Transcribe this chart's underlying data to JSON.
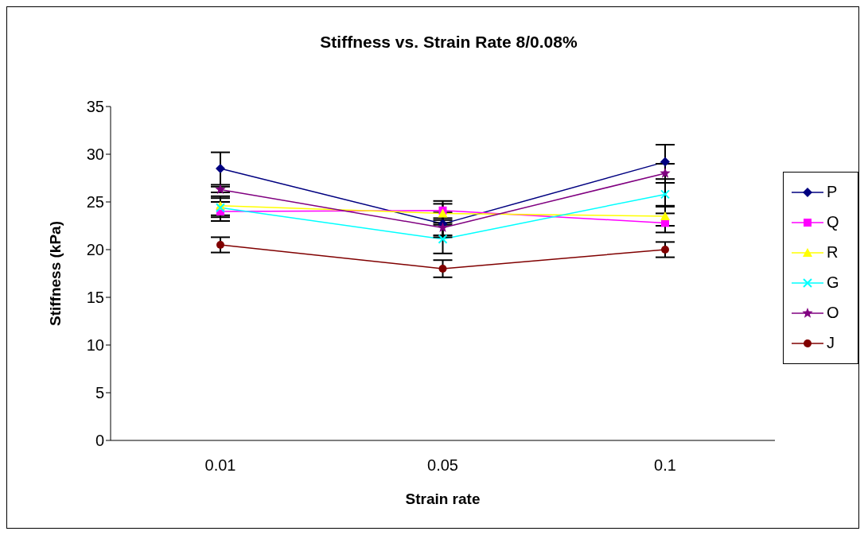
{
  "chart_data": {
    "type": "line",
    "title": "Stiffness vs. Strain Rate 8/0.08%",
    "xlabel": "Strain rate",
    "ylabel": "Stiffness (kPa)",
    "categories": [
      "0.01",
      "0.05",
      "0.1"
    ],
    "ylim": [
      0,
      35
    ],
    "yticks": [
      0,
      5,
      10,
      15,
      20,
      25,
      30,
      35
    ],
    "grid": false,
    "legend": "right",
    "line_style": "solid",
    "series": [
      {
        "name": "P",
        "color": "#000080",
        "marker": "diamond",
        "values": [
          28.5,
          22.7,
          29.2
        ],
        "errors": [
          1.7,
          1.2,
          1.8
        ]
      },
      {
        "name": "Q",
        "color": "#ff00ff",
        "marker": "square",
        "values": [
          24.0,
          24.1,
          22.8
        ],
        "errors": [
          1.0,
          1.0,
          1.0
        ]
      },
      {
        "name": "R",
        "color": "#ffff00",
        "marker": "triangle",
        "values": [
          24.6,
          23.8,
          23.5
        ],
        "errors": [
          1.0,
          1.0,
          1.0
        ]
      },
      {
        "name": "G",
        "color": "#00ffff",
        "marker": "cross",
        "values": [
          24.4,
          21.1,
          25.8
        ],
        "errors": [
          1.0,
          1.5,
          1.2
        ]
      },
      {
        "name": "O",
        "color": "#800080",
        "marker": "star",
        "values": [
          26.3,
          22.3,
          28.0
        ],
        "errors": [
          0.3,
          1.0,
          1.0
        ]
      },
      {
        "name": "J",
        "color": "#800000",
        "marker": "circle",
        "values": [
          20.5,
          18.0,
          20.0
        ],
        "errors": [
          0.8,
          0.9,
          0.8
        ]
      }
    ]
  }
}
